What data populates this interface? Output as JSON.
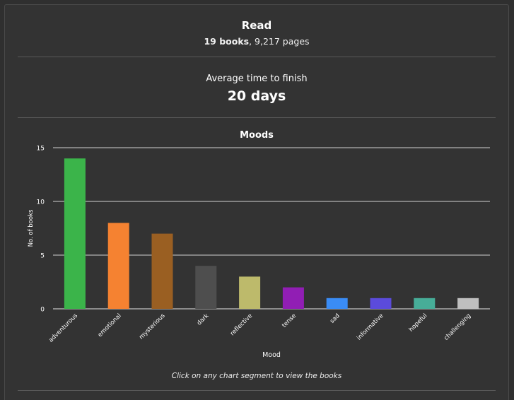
{
  "read": {
    "title": "Read",
    "books": "19 books",
    "pages": ", 9,217 pages"
  },
  "average": {
    "title": "Average time to finish",
    "value": "20 days"
  },
  "moods": {
    "title": "Moods",
    "hint": "Click on any chart segment to view the books"
  },
  "colors": {
    "background": "#333333",
    "grid": "#d9d9d9"
  },
  "chart_data": {
    "type": "bar",
    "title": "Moods",
    "xlabel": "Mood",
    "ylabel": "No. of books",
    "ylim": [
      0,
      15
    ],
    "yticks": [
      0,
      5,
      10,
      15
    ],
    "grid": true,
    "categories": [
      "adventurous",
      "emotional",
      "mysterious",
      "dark",
      "reflective",
      "tense",
      "sad",
      "informative",
      "hopeful",
      "challenging"
    ],
    "values": [
      14,
      8,
      7,
      4,
      3,
      2,
      1,
      1,
      1,
      1
    ],
    "bar_colors": [
      "#3bb44a",
      "#f58231",
      "#9a5f22",
      "#4e4e4e",
      "#bdba6b",
      "#911eb4",
      "#3a8cf5",
      "#5b4bdb",
      "#47ad98",
      "#bfbfbf"
    ]
  }
}
